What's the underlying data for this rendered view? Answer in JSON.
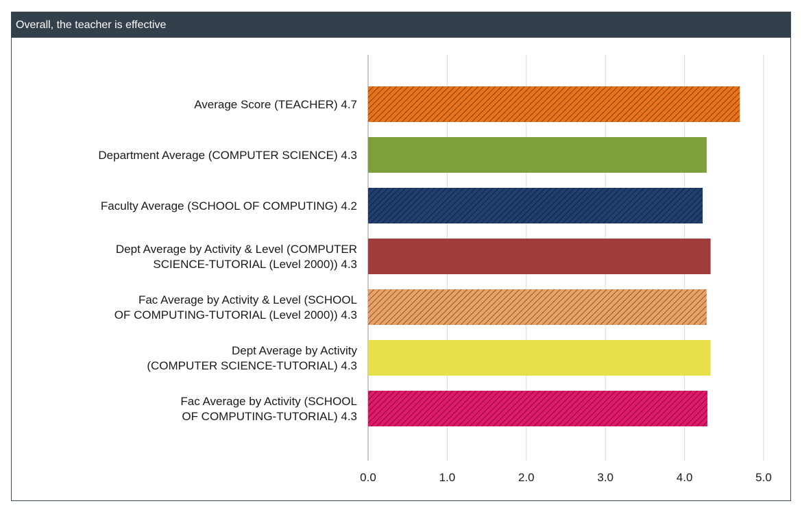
{
  "panel": {
    "title": "Overall, the teacher is effective"
  },
  "colors": {
    "header_bg": "#333f4b",
    "grid": "#d9d9d9",
    "axis": "#b8b8b8"
  },
  "chart_data": {
    "type": "bar",
    "orientation": "horizontal",
    "title": "",
    "xlabel": "",
    "ylabel": "",
    "xlim": [
      0,
      5
    ],
    "ticks": [
      "0.0",
      "1.0",
      "2.0",
      "3.0",
      "4.0",
      "5.0"
    ],
    "grid": true,
    "bars": [
      {
        "label_lines": [
          "Average Score (TEACHER) 4.7"
        ],
        "value": 4.7,
        "color": "#e8731a",
        "hatched": true
      },
      {
        "label_lines": [
          "Department Average (COMPUTER SCIENCE) 4.3"
        ],
        "value": 4.28,
        "color": "#7f9f3c",
        "hatched": false
      },
      {
        "label_lines": [
          "Faculty Average (SCHOOL OF COMPUTING) 4.2"
        ],
        "value": 4.23,
        "color": "#1f3f6e",
        "hatched": true
      },
      {
        "label_lines": [
          "Dept Average by Activity & Level (COMPUTER",
          "SCIENCE-TUTORIAL (Level 2000)) 4.3"
        ],
        "value": 4.33,
        "color": "#a13c3c",
        "hatched": false
      },
      {
        "label_lines": [
          "Fac Average by Activity & Level (SCHOOL",
          "OF COMPUTING-TUTORIAL (Level 2000)) 4.3"
        ],
        "value": 4.28,
        "color": "#eaa264",
        "hatched": true
      },
      {
        "label_lines": [
          "Dept Average by Activity",
          "(COMPUTER SCIENCE-TUTORIAL) 4.3"
        ],
        "value": 4.33,
        "color": "#e6e14a",
        "hatched": false
      },
      {
        "label_lines": [
          "Fac Average by Activity (SCHOOL",
          "OF COMPUTING-TUTORIAL) 4.3"
        ],
        "value": 4.29,
        "color": "#e0196a",
        "hatched": true
      }
    ]
  }
}
